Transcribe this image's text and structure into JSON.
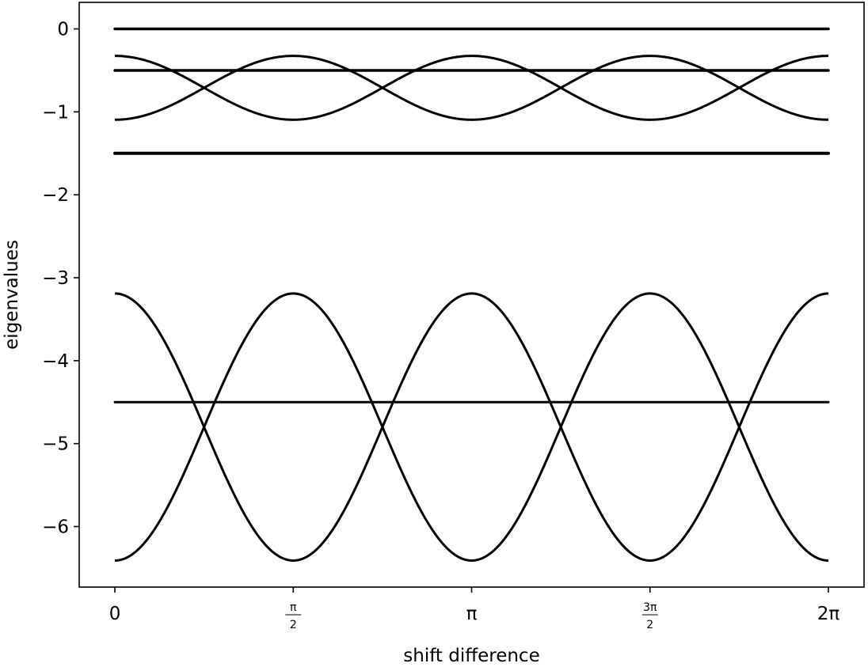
{
  "chart_data": {
    "type": "line",
    "xlabel": "shift difference",
    "ylabel": "eigenvalues",
    "xlim": [
      -0.3142,
      6.5973
    ],
    "ylim": [
      -6.73,
      0.32
    ],
    "grid": false,
    "legend": "none",
    "line_color": "#000000",
    "x_ticks": [
      {
        "value": 0,
        "label": "0"
      },
      {
        "value": 1.5708,
        "num": "π",
        "den": "2"
      },
      {
        "value": 3.1416,
        "label": "π"
      },
      {
        "value": 4.7124,
        "num": "3π",
        "den": "2"
      },
      {
        "value": 6.2832,
        "label": "2π"
      }
    ],
    "y_ticks": [
      {
        "value": 0,
        "label": "0"
      },
      {
        "value": -1,
        "label": "−1"
      },
      {
        "value": -2,
        "label": "−2"
      },
      {
        "value": -3,
        "label": "−3"
      },
      {
        "value": -4,
        "label": "−4"
      },
      {
        "value": -5,
        "label": "−5"
      },
      {
        "value": -6,
        "label": "−6"
      }
    ],
    "x_range": [
      0,
      6.2832
    ],
    "constant_series": [
      {
        "y": 0,
        "width": 3.5
      },
      {
        "y": -0.5,
        "width": 3.5
      },
      {
        "y": -1.5,
        "width": 4
      },
      {
        "y": -4.5,
        "width": 3
      }
    ],
    "cosine_series": [
      {
        "mean": -0.71,
        "amplitude": 0.385,
        "period": 3.1416,
        "sign": 1
      },
      {
        "mean": -0.71,
        "amplitude": 0.385,
        "period": 3.1416,
        "sign": -1
      },
      {
        "mean": -4.8,
        "amplitude": 1.61,
        "period": 3.1416,
        "sign": 1
      },
      {
        "mean": -4.8,
        "amplitude": 1.61,
        "period": 3.1416,
        "sign": -1
      }
    ]
  }
}
